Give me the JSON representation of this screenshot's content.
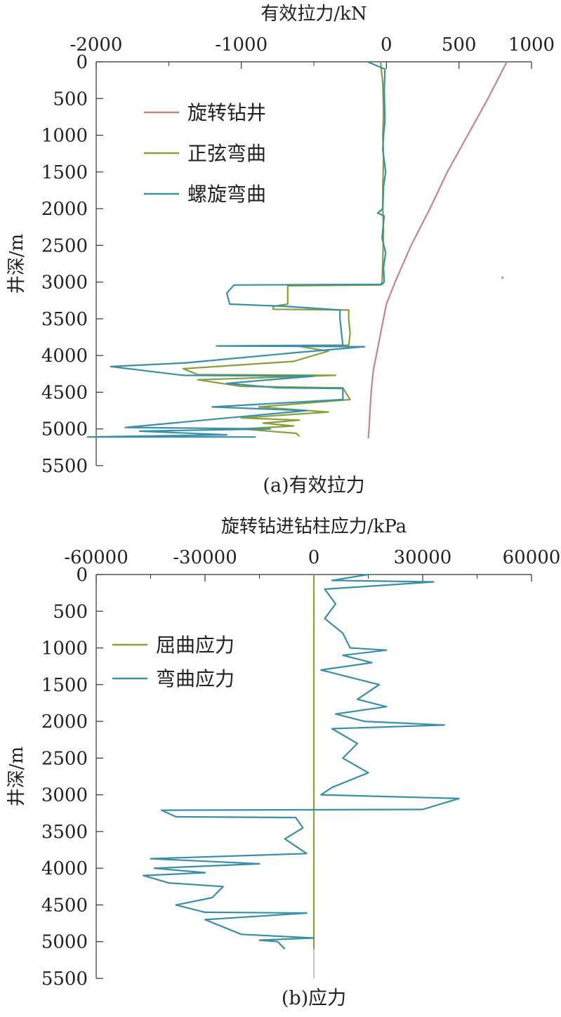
{
  "chart_data": [
    {
      "type": "line",
      "title": "有效拉力/kN",
      "caption": "(a)有效拉力",
      "xlabel": "有效拉力/kN",
      "ylabel": "井深/m",
      "xlim": [
        -2000,
        1000
      ],
      "ylim": [
        5500,
        0
      ],
      "x_ticks": [
        "-2000",
        "-1000",
        "0",
        "500",
        "1000"
      ],
      "x_tick_values": [
        -2000,
        -1000,
        0,
        500,
        1000
      ],
      "y_ticks": [
        "0",
        "500",
        "1000",
        "1500",
        "2000",
        "2500",
        "3000",
        "3500",
        "4000",
        "4500",
        "5000",
        "5500"
      ],
      "y_tick_values": [
        0,
        500,
        1000,
        1500,
        2000,
        2500,
        3000,
        3500,
        4000,
        4500,
        5000,
        5500
      ],
      "legend_position": "top-left",
      "series": [
        {
          "name": "旋转钻井",
          "color": "#c4868a",
          "points": [
            [
              830,
              0
            ],
            [
              700,
              500
            ],
            [
              560,
              1000
            ],
            [
              420,
              1500
            ],
            [
              300,
              2000
            ],
            [
              170,
              2500
            ],
            [
              60,
              3000
            ],
            [
              0,
              3300
            ],
            [
              -30,
              3600
            ],
            [
              -70,
              4000
            ],
            [
              -90,
              4200
            ],
            [
              -105,
              4500
            ],
            [
              -120,
              5000
            ],
            [
              -125,
              5130
            ]
          ]
        },
        {
          "name": "正弦弯曲",
          "color": "#86a03e",
          "points": [
            [
              -40,
              0
            ],
            [
              -25,
              300
            ],
            [
              -20,
              700
            ],
            [
              -25,
              1000
            ],
            [
              -20,
              1300
            ],
            [
              -25,
              1700
            ],
            [
              -25,
              2000
            ],
            [
              -20,
              2300
            ],
            [
              -25,
              2700
            ],
            [
              -30,
              3000
            ],
            [
              -40,
              3040
            ],
            [
              -680,
              3050
            ],
            [
              -680,
              3300
            ],
            [
              -780,
              3330
            ],
            [
              -780,
              3370
            ],
            [
              -260,
              3380
            ],
            [
              -260,
              3500
            ],
            [
              -250,
              3700
            ],
            [
              -260,
              3860
            ],
            [
              -620,
              3870
            ],
            [
              -400,
              3940
            ],
            [
              -640,
              4080
            ],
            [
              -1400,
              4180
            ],
            [
              -1300,
              4260
            ],
            [
              -350,
              4270
            ],
            [
              -1300,
              4330
            ],
            [
              -1000,
              4420
            ],
            [
              -300,
              4440
            ],
            [
              -250,
              4600
            ],
            [
              -880,
              4700
            ],
            [
              -400,
              4770
            ],
            [
              -1000,
              4850
            ],
            [
              -600,
              4880
            ],
            [
              -850,
              4920
            ],
            [
              -640,
              4960
            ],
            [
              -1000,
              5000
            ],
            [
              -620,
              5060
            ],
            [
              -600,
              5100
            ]
          ]
        },
        {
          "name": "螺旋弯曲",
          "color": "#3b8fa6",
          "points": [
            [
              -130,
              0
            ],
            [
              -10,
              100
            ],
            [
              -15,
              400
            ],
            [
              -10,
              800
            ],
            [
              -20,
              1000
            ],
            [
              -25,
              1200
            ],
            [
              -5,
              1500
            ],
            [
              -20,
              1700
            ],
            [
              -25,
              2000
            ],
            [
              -60,
              2060
            ],
            [
              -15,
              2100
            ],
            [
              -30,
              2400
            ],
            [
              -5,
              2600
            ],
            [
              -20,
              2800
            ],
            [
              -15,
              3000
            ],
            [
              -30,
              3030
            ],
            [
              -1050,
              3040
            ],
            [
              -1100,
              3150
            ],
            [
              -1080,
              3300
            ],
            [
              -700,
              3330
            ],
            [
              -320,
              3380
            ],
            [
              -320,
              3500
            ],
            [
              -300,
              3860
            ],
            [
              -1170,
              3870
            ],
            [
              -150,
              3880
            ],
            [
              -620,
              3960
            ],
            [
              -1380,
              4100
            ],
            [
              -1900,
              4150
            ],
            [
              -1400,
              4270
            ],
            [
              -500,
              4280
            ],
            [
              -1100,
              4380
            ],
            [
              -750,
              4440
            ],
            [
              -300,
              4450
            ],
            [
              -300,
              4600
            ],
            [
              -1200,
              4700
            ],
            [
              -550,
              4750
            ],
            [
              -1800,
              4980
            ],
            [
              -800,
              5000
            ],
            [
              -1700,
              5030
            ],
            [
              -1100,
              5080
            ],
            [
              -2060,
              5110
            ],
            [
              -900,
              5110
            ]
          ]
        }
      ]
    },
    {
      "type": "line",
      "title": "旋转钻进钻柱应力/kPa",
      "caption": "(b)应力",
      "xlabel": "旋转钻进钻柱应力/kPa",
      "ylabel": "井深/m",
      "xlim": [
        -60000,
        60000
      ],
      "ylim": [
        5500,
        0
      ],
      "x_ticks": [
        "-60000",
        "-30000",
        "0",
        "30000",
        "60000"
      ],
      "x_tick_values": [
        -60000,
        -30000,
        0,
        30000,
        60000
      ],
      "y_ticks": [
        "0",
        "500",
        "1000",
        "1500",
        "2000",
        "2500",
        "3000",
        "3500",
        "4000",
        "4500",
        "5000",
        "5500"
      ],
      "y_tick_values": [
        0,
        500,
        1000,
        1500,
        2000,
        2500,
        3000,
        3500,
        4000,
        4500,
        5000,
        5500
      ],
      "legend_position": "top-left",
      "series": [
        {
          "name": "屈曲应力",
          "color": "#86a03e",
          "points": [
            [
              0,
              0
            ],
            [
              0,
              5100
            ]
          ]
        },
        {
          "name": "弯曲应力",
          "color": "#3b8fa6",
          "points": [
            [
              15000,
              0
            ],
            [
              5000,
              80
            ],
            [
              33000,
              100
            ],
            [
              3000,
              200
            ],
            [
              6000,
              400
            ],
            [
              3000,
              600
            ],
            [
              8000,
              800
            ],
            [
              10000,
              1000
            ],
            [
              20000,
              1030
            ],
            [
              8000,
              1100
            ],
            [
              16000,
              1200
            ],
            [
              2000,
              1300
            ],
            [
              10000,
              1400
            ],
            [
              18000,
              1500
            ],
            [
              12000,
              1700
            ],
            [
              20000,
              1800
            ],
            [
              6000,
              1900
            ],
            [
              14000,
              2000
            ],
            [
              36000,
              2050
            ],
            [
              5000,
              2100
            ],
            [
              12000,
              2300
            ],
            [
              8000,
              2500
            ],
            [
              15000,
              2700
            ],
            [
              5000,
              2900
            ],
            [
              2000,
              3000
            ],
            [
              40000,
              3050
            ],
            [
              30000,
              3200
            ],
            [
              -42000,
              3210
            ],
            [
              -38000,
              3300
            ],
            [
              -5000,
              3310
            ],
            [
              -3000,
              3450
            ],
            [
              -8000,
              3600
            ],
            [
              -2000,
              3800
            ],
            [
              -45000,
              3870
            ],
            [
              -15000,
              3940
            ],
            [
              -44000,
              4000
            ],
            [
              -30000,
              4060
            ],
            [
              -47000,
              4100
            ],
            [
              -40000,
              4200
            ],
            [
              -25000,
              4250
            ],
            [
              -28000,
              4400
            ],
            [
              -38000,
              4500
            ],
            [
              -30000,
              4600
            ],
            [
              -2000,
              4610
            ],
            [
              -30000,
              4700
            ],
            [
              -25000,
              4800
            ],
            [
              -20000,
              4900
            ],
            [
              0,
              4950
            ],
            [
              -15000,
              4980
            ],
            [
              -10000,
              5000
            ],
            [
              -8000,
              5100
            ]
          ]
        }
      ]
    }
  ]
}
